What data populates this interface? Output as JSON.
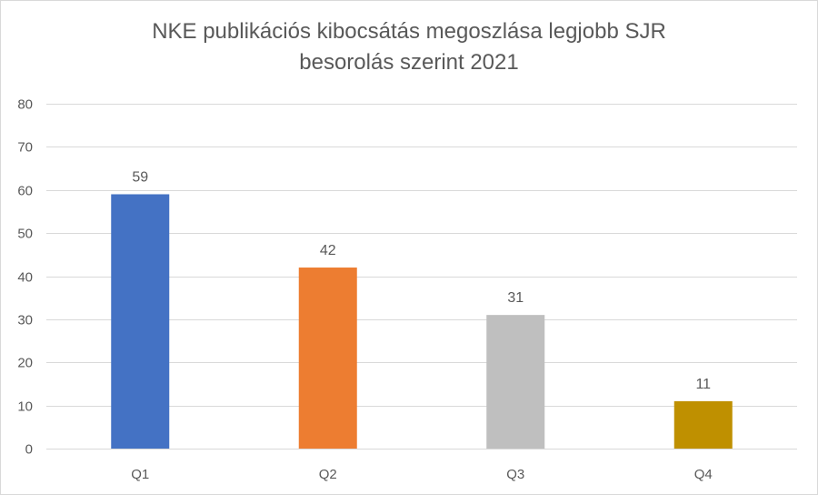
{
  "chart_data": {
    "type": "bar",
    "title_lines": [
      "NKE publikációs kibocsátás megoszlása legjobb SJR",
      "besorolás szerint 2021"
    ],
    "categories": [
      "Q1",
      "Q2",
      "Q3",
      "Q4"
    ],
    "values": [
      59,
      42,
      31,
      11
    ],
    "data_labels": [
      "59",
      "42",
      "31",
      "11"
    ],
    "colors": [
      "#4472c4",
      "#ed7d31",
      "#bfbfbf",
      "#bf9000"
    ],
    "ylim": [
      0,
      80
    ],
    "yticks": [
      0,
      10,
      20,
      30,
      40,
      50,
      60,
      70,
      80
    ],
    "grid": true,
    "legend": "none",
    "xlabel": "",
    "ylabel": ""
  }
}
